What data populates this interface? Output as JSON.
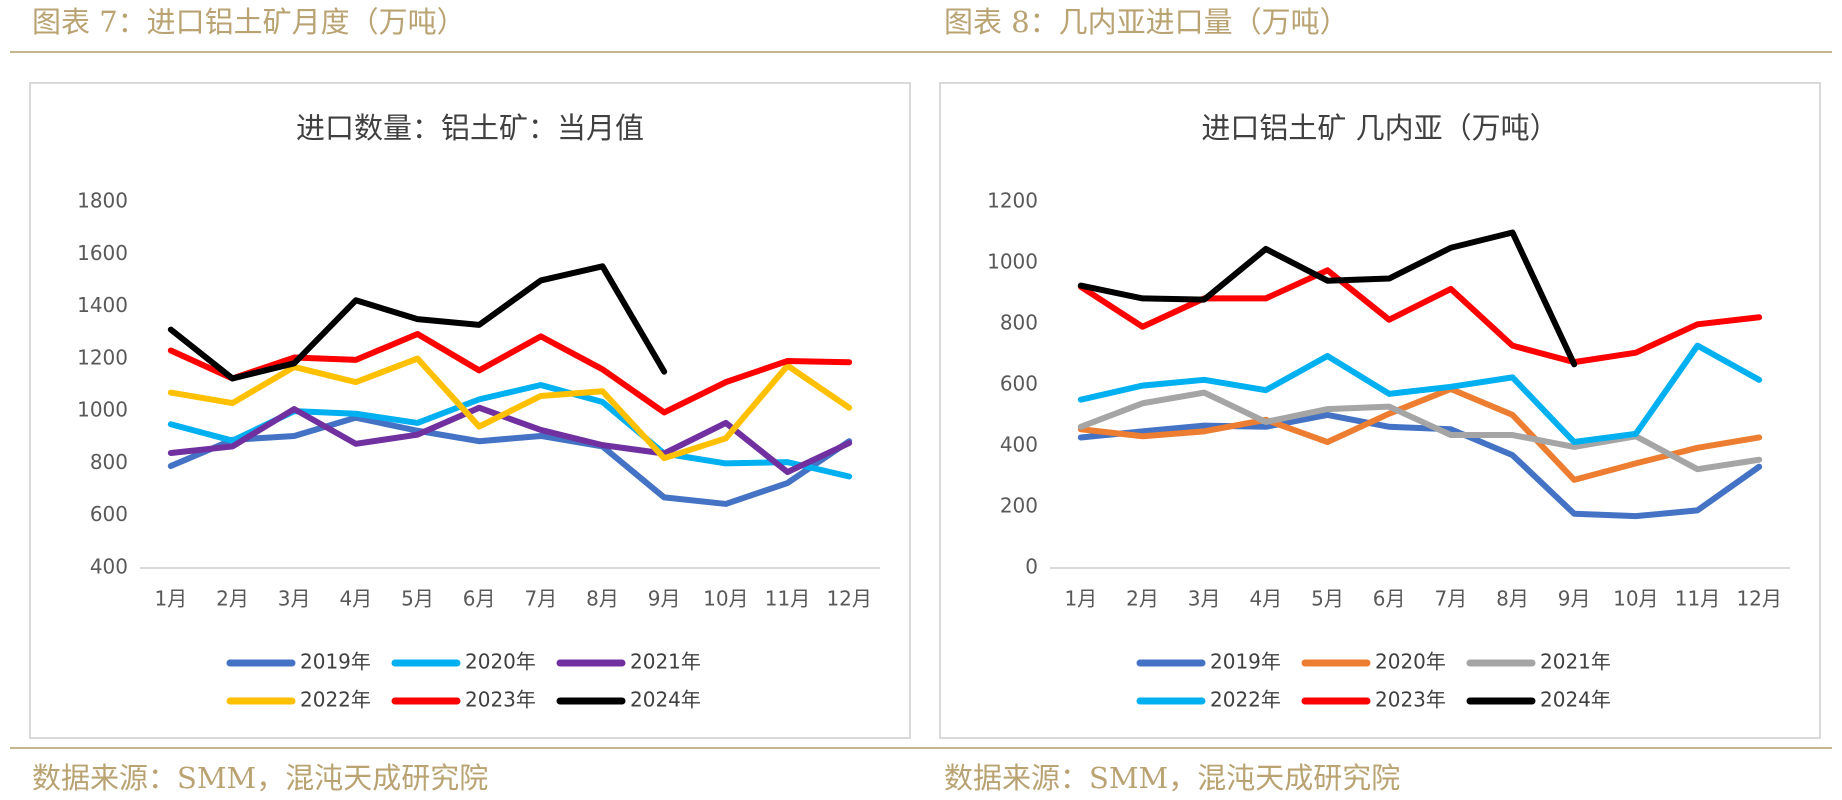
{
  "figures": [
    {
      "caption": "图表 7：进口铝土矿月度（万吨）",
      "source": "数据来源：SMM，混沌天成研究院"
    },
    {
      "caption": "图表 8：几内亚进口量（万吨）",
      "source": "数据来源：SMM，混沌天成研究院"
    }
  ],
  "chart_data": [
    {
      "type": "line",
      "title": "进口数量：铝土矿：当月值",
      "categories": [
        "1月",
        "2月",
        "3月",
        "4月",
        "5月",
        "6月",
        "7月",
        "8月",
        "9月",
        "10月",
        "11月",
        "12月"
      ],
      "ylim": [
        400,
        1800
      ],
      "yticks": [
        400,
        600,
        800,
        1000,
        1200,
        1400,
        1600,
        1800
      ],
      "series": [
        {
          "name": "2019年",
          "color": "#4472c4",
          "values": [
            790,
            890,
            905,
            975,
            925,
            885,
            905,
            865,
            670,
            645,
            725,
            885
          ]
        },
        {
          "name": "2020年",
          "color": "#00b0f0",
          "values": [
            950,
            887,
            1000,
            990,
            955,
            1045,
            1100,
            1035,
            838,
            800,
            805,
            750
          ]
        },
        {
          "name": "2021年",
          "color": "#7030a0",
          "values": [
            840,
            865,
            1008,
            875,
            910,
            1013,
            928,
            870,
            838,
            955,
            767,
            878
          ]
        },
        {
          "name": "2022年",
          "color": "#ffc000",
          "values": [
            1071,
            1031,
            1169,
            1111,
            1201,
            941,
            1058,
            1076,
            820,
            896,
            1174,
            1013
          ]
        },
        {
          "name": "2023年",
          "color": "#ff0000",
          "values": [
            1232,
            1125,
            1205,
            1196,
            1295,
            1156,
            1286,
            1160,
            995,
            1111,
            1192,
            1187
          ]
        },
        {
          "name": "2024年",
          "color": "#000000",
          "values": [
            1312,
            1125,
            1183,
            1424,
            1352,
            1330,
            1500,
            1554,
            1151,
            null,
            null,
            null
          ]
        }
      ]
    },
    {
      "type": "line",
      "title": "进口铝土矿 几内亚（万吨）",
      "categories": [
        "1月",
        "2月",
        "3月",
        "4月",
        "5月",
        "6月",
        "7月",
        "8月",
        "9月",
        "10月",
        "11月",
        "12月"
      ],
      "ylim": [
        0,
        1200
      ],
      "yticks": [
        0,
        200,
        400,
        600,
        800,
        1000,
        1200
      ],
      "series": [
        {
          "name": "2019年",
          "color": "#4472c4",
          "values": [
            428,
            448,
            467,
            463,
            502,
            463,
            455,
            370,
            178,
            170,
            189,
            332
          ]
        },
        {
          "name": "2020年",
          "color": "#ed7d31",
          "values": [
            455,
            432,
            448,
            486,
            413,
            506,
            587,
            502,
            289,
            343,
            394,
            428
          ]
        },
        {
          "name": "2021年",
          "color": "#a5a5a5",
          "values": [
            463,
            540,
            575,
            479,
            521,
            529,
            436,
            436,
            397,
            432,
            324,
            355
          ]
        },
        {
          "name": "2022年",
          "color": "#00b0f0",
          "values": [
            552,
            598,
            617,
            583,
            695,
            571,
            594,
            625,
            413,
            440,
            729,
            617
          ]
        },
        {
          "name": "2023年",
          "color": "#ff0000",
          "values": [
            922,
            791,
            884,
            884,
            976,
            814,
            915,
            729,
            675,
            706,
            799,
            822
          ]
        },
        {
          "name": "2024年",
          "color": "#000000",
          "values": [
            926,
            884,
            880,
            1046,
            942,
            949,
            1050,
            1100,
            668,
            null,
            null,
            null
          ]
        }
      ]
    }
  ]
}
